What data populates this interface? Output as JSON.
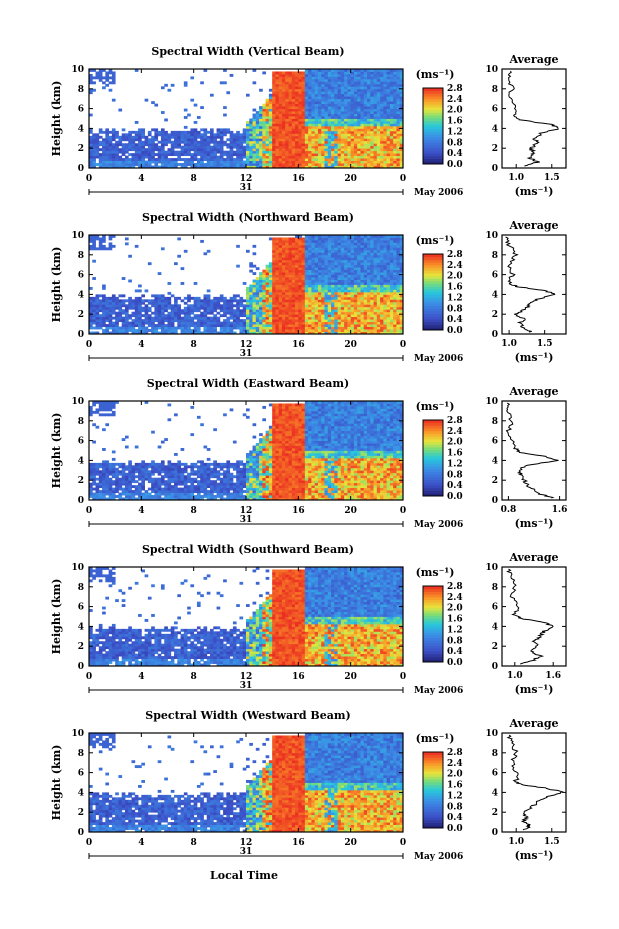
{
  "figure": {
    "date_label": "May 2006",
    "day_label": "31",
    "xlabel": "Local Time",
    "x_ticks": [
      "0",
      "4",
      "8",
      "12",
      "16",
      "20",
      "0"
    ],
    "y_ticks": [
      "0",
      "2",
      "4",
      "6",
      "8",
      "10"
    ],
    "ylabel": "Height (km)",
    "unit_label": "(ms⁻¹)",
    "colorbar_ticks": [
      "0.0",
      "0.4",
      "0.8",
      "1.2",
      "1.6",
      "2.0",
      "2.4",
      "2.8"
    ],
    "average_title": "Average",
    "average_xlabel": "(ms⁻¹)"
  },
  "chart_data": [
    {
      "type": "heatmap",
      "title": "Spectral Width (Vertical Beam)",
      "x_range_hours": [
        0,
        24
      ],
      "y_range_km": [
        0,
        10
      ],
      "color_range": [
        0.0,
        2.8
      ],
      "average_profile": {
        "x_ticks": [
          "1.0",
          "1.5"
        ],
        "xlim": [
          0.8,
          1.7
        ],
        "height_km": [
          0.2,
          0.6,
          1.0,
          1.5,
          2.0,
          2.5,
          3.0,
          3.5,
          4.0,
          4.4,
          4.8,
          5.2,
          6.0,
          7.0,
          8.0,
          9.0,
          9.8
        ],
        "width_ms": [
          1.15,
          1.3,
          1.2,
          1.25,
          1.2,
          1.3,
          1.25,
          1.35,
          1.6,
          1.5,
          1.1,
          0.95,
          1.0,
          0.9,
          0.95,
          0.9,
          0.92
        ]
      }
    },
    {
      "type": "heatmap",
      "title": "Spectral Width (Northward Beam)",
      "x_range_hours": [
        0,
        24
      ],
      "y_range_km": [
        0,
        10
      ],
      "color_range": [
        0.0,
        2.8
      ],
      "average_profile": {
        "x_ticks": [
          "1.0",
          "1.5"
        ],
        "xlim": [
          0.9,
          1.8
        ],
        "height_km": [
          0.2,
          0.6,
          1.0,
          1.5,
          2.0,
          2.5,
          3.0,
          3.5,
          4.0,
          4.4,
          4.8,
          5.2,
          6.0,
          7.0,
          8.0,
          9.0,
          9.8
        ],
        "width_ms": [
          1.3,
          1.2,
          1.15,
          1.2,
          1.1,
          1.2,
          1.3,
          1.4,
          1.65,
          1.5,
          1.1,
          1.0,
          1.05,
          1.0,
          1.1,
          1.0,
          0.95
        ]
      }
    },
    {
      "type": "heatmap",
      "title": "Spectral Width (Eastward Beam)",
      "x_range_hours": [
        0,
        24
      ],
      "y_range_km": [
        0,
        10
      ],
      "color_range": [
        0.0,
        2.8
      ],
      "average_profile": {
        "x_ticks": [
          "0.8",
          "1.6"
        ],
        "xlim": [
          0.7,
          1.7
        ],
        "height_km": [
          0.2,
          0.6,
          1.0,
          1.5,
          2.0,
          2.5,
          3.0,
          3.5,
          4.0,
          4.4,
          4.8,
          5.2,
          6.0,
          7.0,
          8.0,
          9.0,
          9.8
        ],
        "width_ms": [
          1.5,
          1.3,
          1.2,
          1.1,
          1.05,
          1.0,
          0.95,
          1.1,
          1.55,
          1.4,
          1.0,
          0.9,
          0.85,
          0.8,
          0.85,
          0.8,
          0.78
        ]
      }
    },
    {
      "type": "heatmap",
      "title": "Spectral Width (Southward Beam)",
      "x_range_hours": [
        0,
        24
      ],
      "y_range_km": [
        0,
        10
      ],
      "color_range": [
        0.0,
        2.8
      ],
      "average_profile": {
        "x_ticks": [
          "1.0",
          "1.6"
        ],
        "xlim": [
          0.8,
          1.8
        ],
        "height_km": [
          0.2,
          0.6,
          1.0,
          1.5,
          2.0,
          2.5,
          3.0,
          3.5,
          4.0,
          4.4,
          4.8,
          5.2,
          6.0,
          7.0,
          8.0,
          9.0,
          9.8
        ],
        "width_ms": [
          1.1,
          1.3,
          1.4,
          1.25,
          1.35,
          1.3,
          1.4,
          1.45,
          1.6,
          1.45,
          1.1,
          1.0,
          1.05,
          0.95,
          1.0,
          0.95,
          0.9
        ]
      }
    },
    {
      "type": "heatmap",
      "title": "Spectral Width (Westward Beam)",
      "x_range_hours": [
        0,
        24
      ],
      "y_range_km": [
        0,
        10
      ],
      "color_range": [
        0.0,
        2.8
      ],
      "average_profile": {
        "x_ticks": [
          "1.0",
          "1.5"
        ],
        "xlim": [
          0.8,
          1.7
        ],
        "height_km": [
          0.2,
          0.6,
          1.0,
          1.5,
          2.0,
          2.5,
          3.0,
          3.5,
          4.0,
          4.4,
          4.8,
          5.2,
          6.0,
          7.0,
          8.0,
          9.0,
          9.8
        ],
        "width_ms": [
          1.1,
          1.2,
          1.1,
          1.15,
          1.1,
          1.2,
          1.3,
          1.4,
          1.65,
          1.45,
          1.05,
          1.0,
          1.0,
          0.95,
          1.0,
          0.95,
          0.9
        ]
      }
    }
  ]
}
